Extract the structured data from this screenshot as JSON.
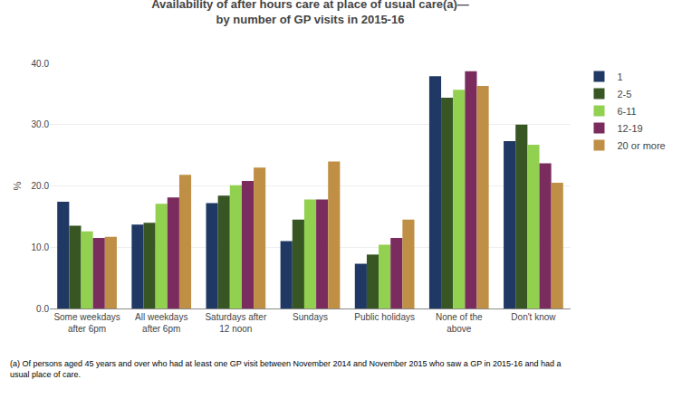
{
  "chart_data": {
    "type": "bar",
    "title": "Availability of after hours care at place of usual care(a)—",
    "subtitle": "by number of GP visits in 2015-16",
    "y_label": "%",
    "categories": [
      "Some weekdays\nafter 6pm",
      "All weekdays\nafter 6pm",
      "Saturdays after\n12 noon",
      "Sundays",
      "Public holidays",
      "None of the\nabove",
      "Don't know"
    ],
    "series": [
      {
        "name": "1",
        "color": "#1F3864",
        "values": [
          17.4,
          13.7,
          17.2,
          11.0,
          7.3,
          37.9,
          27.3
        ]
      },
      {
        "name": "2-5",
        "color": "#375623",
        "values": [
          13.5,
          14.0,
          18.4,
          14.5,
          8.8,
          34.4,
          30.0
        ]
      },
      {
        "name": "6-11",
        "color": "#92D050",
        "values": [
          12.6,
          17.1,
          20.1,
          17.8,
          10.4,
          35.7,
          26.7
        ]
      },
      {
        "name": "12-19",
        "color": "#7B2C5E",
        "values": [
          11.5,
          18.1,
          20.8,
          17.8,
          11.5,
          38.7,
          23.7
        ]
      },
      {
        "name": "20 or more",
        "color": "#BF8F45",
        "values": [
          11.7,
          21.8,
          23.0,
          24.0,
          14.5,
          36.3,
          20.5
        ]
      }
    ],
    "ylim": [
      0,
      40
    ],
    "yticks": [
      {
        "value": 0,
        "label": "0.0"
      },
      {
        "value": 10,
        "label": "10.0"
      },
      {
        "value": 20,
        "label": "20.0"
      },
      {
        "value": 30,
        "label": "30.0"
      },
      {
        "value": 40,
        "label": "40.0"
      }
    ],
    "grid": true,
    "legend": "right",
    "annotations": [
      "(a) Of persons aged 45 years and over who had at least one GP visit between November 2014 and November 2015 who saw a GP in 2015-16 and had a\nusual place of care."
    ]
  }
}
